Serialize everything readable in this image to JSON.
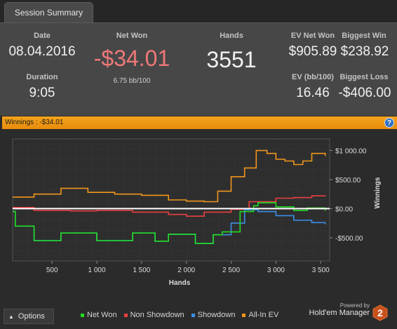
{
  "tab": {
    "label": "Session Summary"
  },
  "summary": {
    "date_label": "Date",
    "date_value": "08.04.2016",
    "duration_label": "Duration",
    "duration_value": "9:05",
    "netwon_label": "Net Won",
    "netwon_value": "-$34.01",
    "bb100": "6.75 bb/100",
    "hands_label": "Hands",
    "hands_value": "3551",
    "evnet_label": "EV Net Won",
    "evnet_value": "$905.89",
    "evbb_label": "EV (bb/100)",
    "evbb_value": "16.46",
    "bigwin_label": "Biggest Win",
    "bigwin_value": "$238.92",
    "bigloss_label": "Biggest Loss",
    "bigloss_value": "-$406.00"
  },
  "winbar": {
    "text": "Winnings : -$34.01",
    "help": "?"
  },
  "options": {
    "label": "Options"
  },
  "powered": {
    "line1": "Powered by",
    "brand": "Hold'em Manager",
    "badge": "2"
  },
  "colors": {
    "net_won": "#22dd22",
    "non_showdown": "#e84040",
    "showdown": "#3b8fe8",
    "all_in_ev": "#f0961c",
    "negative": "#f07878",
    "accent_bar": "#f29c18"
  },
  "chart_data": {
    "type": "line",
    "xlabel": "Hands",
    "ylabel": "Winnings",
    "xlim": [
      60,
      3600
    ],
    "ylim": [
      -900,
      1200
    ],
    "x_ticks": [
      500,
      1000,
      1500,
      2000,
      2500,
      3000,
      3500
    ],
    "x_tick_labels": [
      "500",
      "1 000",
      "1 500",
      "2 000",
      "2 500",
      "3 000",
      "3 500"
    ],
    "y_ticks": [
      1000,
      500,
      0,
      -500
    ],
    "y_tick_labels": [
      "$1 000.00",
      "$500.00",
      "$0.00",
      "-$500.00"
    ],
    "zero_line": true,
    "grid": true,
    "legend_position": "bottom",
    "series": [
      {
        "name": "Net Won",
        "color": "#22dd22",
        "x": [
          60,
          90,
          300,
          600,
          1000,
          1400,
          1650,
          1800,
          2100,
          2300,
          2400,
          2600,
          2750,
          2800,
          3000,
          3200,
          3350,
          3551
        ],
        "y": [
          -50,
          -300,
          -550,
          -420,
          -550,
          -420,
          -560,
          -440,
          -600,
          -450,
          -400,
          -50,
          50,
          100,
          30,
          -30,
          10,
          -34
        ]
      },
      {
        "name": "Non Showdown",
        "color": "#e84040",
        "x": [
          60,
          300,
          700,
          1000,
          1400,
          1800,
          2000,
          2200,
          2500,
          2700,
          3000,
          3200,
          3400,
          3551
        ],
        "y": [
          20,
          -30,
          -40,
          -30,
          -60,
          -100,
          -130,
          -60,
          -10,
          120,
          180,
          190,
          220,
          230
        ]
      },
      {
        "name": "Showdown",
        "color": "#3b8fe8",
        "x": [
          60,
          90,
          300,
          600,
          1000,
          1400,
          1650,
          1800,
          2100,
          2300,
          2500,
          2650,
          2800,
          3000,
          3200,
          3400,
          3551
        ],
        "y": [
          -50,
          -300,
          -550,
          -420,
          -550,
          -420,
          -560,
          -440,
          -600,
          -450,
          -250,
          -20,
          -50,
          -120,
          -200,
          -240,
          -270
        ]
      },
      {
        "name": "All-In EV",
        "color": "#f0961c",
        "x": [
          60,
          300,
          600,
          900,
          1200,
          1500,
          1800,
          2000,
          2200,
          2350,
          2500,
          2650,
          2780,
          2900,
          3000,
          3100,
          3200,
          3300,
          3400,
          3551
        ],
        "y": [
          200,
          250,
          350,
          280,
          250,
          230,
          150,
          130,
          120,
          300,
          550,
          700,
          1000,
          950,
          850,
          820,
          760,
          820,
          950,
          906
        ]
      }
    ]
  }
}
